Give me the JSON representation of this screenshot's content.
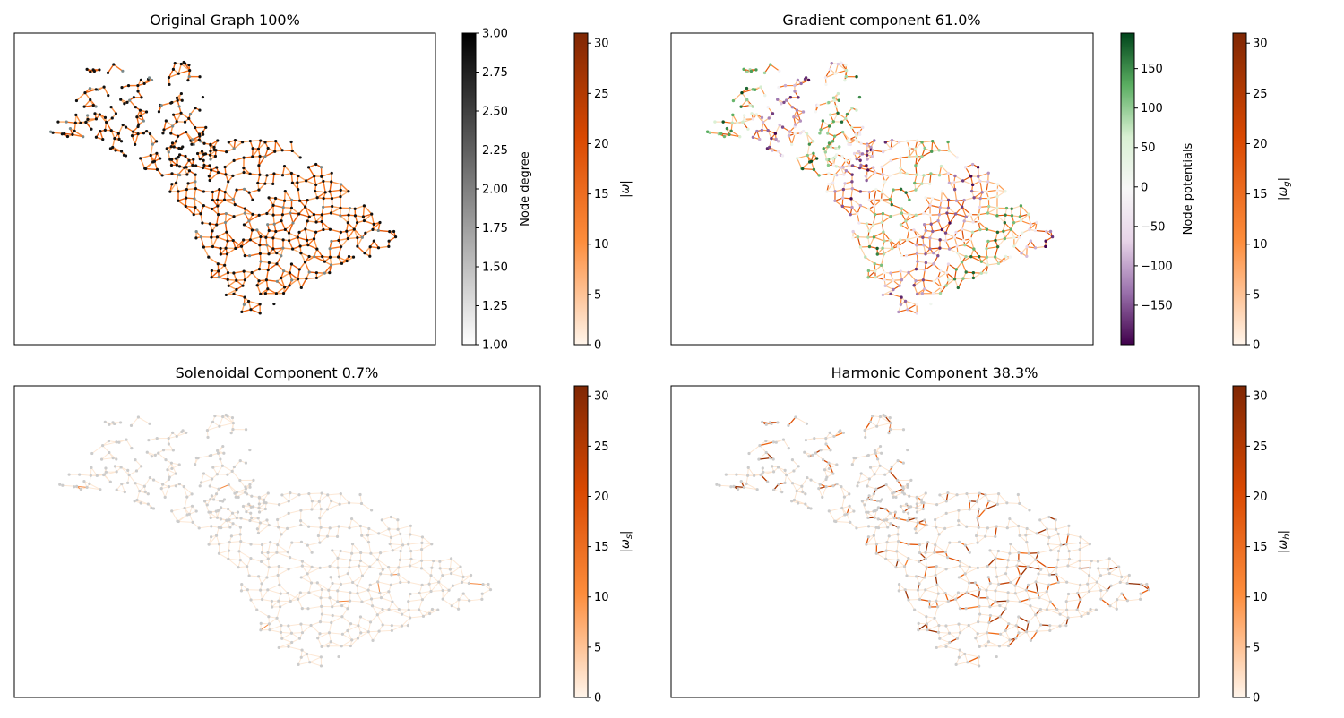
{
  "chart_data": [
    {
      "type": "scatter",
      "title": "Original Graph 100%",
      "colorbars": [
        {
          "label": "Node degree",
          "ticks": [
            "1.00",
            "1.25",
            "1.50",
            "1.75",
            "2.00",
            "2.25",
            "2.50",
            "2.75",
            "3.00"
          ],
          "tick_values": [
            1,
            1.25,
            1.5,
            1.75,
            2,
            2.25,
            2.5,
            2.75,
            3
          ],
          "range": [
            1,
            3
          ],
          "colormap": "bone_r",
          "colors": [
            "#ffffff",
            "#000000"
          ]
        },
        {
          "label": "|ω|",
          "ticks": [
            "0",
            "5",
            "10",
            "15",
            "20",
            "25",
            "30"
          ],
          "tick_values": [
            0,
            5,
            10,
            15,
            20,
            25,
            30
          ],
          "range": [
            0,
            31
          ],
          "colormap": "Oranges",
          "colors": [
            "#fff5eb",
            "#fd8d3c",
            "#d94801",
            "#7f2704"
          ]
        }
      ],
      "node_color": "#111111",
      "edge_color": "#f47b2a"
    },
    {
      "type": "scatter",
      "title": "Gradient component 61.0%",
      "colorbars": [
        {
          "label": "Node potentials",
          "ticks": [
            "−150",
            "−100",
            "−50",
            "0",
            "50",
            "100",
            "150"
          ],
          "tick_values": [
            -150,
            -100,
            -50,
            0,
            50,
            100,
            150
          ],
          "range": [
            -200,
            195
          ],
          "colormap": "PRGn",
          "colors": [
            "#40004b",
            "#9970ab",
            "#e7d4e8",
            "#f7f7f7",
            "#d9f0d3",
            "#5aae61",
            "#00441b"
          ]
        },
        {
          "label": "|ω_g|",
          "ticks": [
            "0",
            "5",
            "10",
            "15",
            "20",
            "25",
            "30"
          ],
          "tick_values": [
            0,
            5,
            10,
            15,
            20,
            25,
            30
          ],
          "range": [
            0,
            31
          ],
          "colormap": "Oranges",
          "colors": [
            "#fff5eb",
            "#fd8d3c",
            "#d94801",
            "#7f2704"
          ]
        }
      ]
    },
    {
      "type": "scatter",
      "title": "Solenoidal Component 0.7%",
      "colorbars": [
        {
          "label": "|ω_s|",
          "ticks": [
            "0",
            "5",
            "10",
            "15",
            "20",
            "25",
            "30"
          ],
          "tick_values": [
            0,
            5,
            10,
            15,
            20,
            25,
            30
          ],
          "range": [
            0,
            31
          ],
          "colormap": "Oranges",
          "colors": [
            "#fff5eb",
            "#fd8d3c",
            "#d94801",
            "#7f2704"
          ]
        }
      ],
      "node_color": "#cccccc"
    },
    {
      "type": "scatter",
      "title": "Harmonic Component 38.3%",
      "colorbars": [
        {
          "label": "|ω_h|",
          "ticks": [
            "0",
            "5",
            "10",
            "15",
            "20",
            "25",
            "30"
          ],
          "tick_values": [
            0,
            5,
            10,
            15,
            20,
            25,
            30
          ],
          "range": [
            0,
            31
          ],
          "colormap": "Oranges",
          "colors": [
            "#fff5eb",
            "#fd8d3c",
            "#d94801",
            "#7f2704"
          ]
        }
      ],
      "node_color": "#cccccc"
    }
  ]
}
